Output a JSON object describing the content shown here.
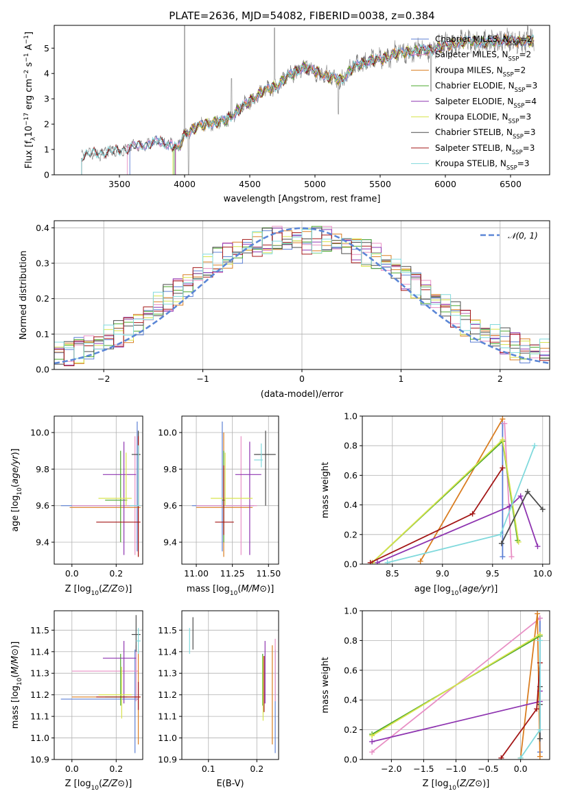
{
  "title": "PLATE=2636, MJD=54082, FIBERID=0038, z=0.384",
  "models": [
    {
      "name": "Chabrier MILES, N",
      "sub": "SSP",
      "tail": "=2",
      "color": "#5b7fd4"
    },
    {
      "name": "Salpeter MILES, N",
      "sub": "SSP",
      "tail": "=2",
      "color": "#e88fc4"
    },
    {
      "name": "Kroupa MILES, N",
      "sub": "SSP",
      "tail": "=2",
      "color": "#d97d21"
    },
    {
      "name": "Chabrier ELODIE, N",
      "sub": "SSP",
      "tail": "=3",
      "color": "#4aa62b"
    },
    {
      "name": "Salpeter ELODIE, N",
      "sub": "SSP",
      "tail": "=4",
      "color": "#8e34b0"
    },
    {
      "name": "Kroupa ELODIE, N",
      "sub": "SSP",
      "tail": "=3",
      "color": "#d7e34c"
    },
    {
      "name": "Chabrier STELIB, N",
      "sub": "SSP",
      "tail": "=3",
      "color": "#4a4a4a"
    },
    {
      "name": "Salpeter STELIB, N",
      "sub": "SSP",
      "tail": "=3",
      "color": "#a31616"
    },
    {
      "name": "Kroupa STELIB, N",
      "sub": "SSP",
      "tail": "=3",
      "color": "#7fd9dc"
    }
  ],
  "chart_data": [
    {
      "id": "spectrum",
      "type": "line",
      "xlabel": "wavelength [Angstrom, rest frame]",
      "ylabel_parts": [
        "Flux [f",
        "λ",
        "10",
        "−17",
        " erg cm",
        "−2",
        " s",
        "−1",
        " A",
        "−1",
        "]"
      ],
      "xlim": [
        3000,
        6800
      ],
      "ylim": [
        0,
        5.9
      ],
      "xticks": [
        3500,
        4000,
        4500,
        5000,
        5500,
        6000,
        6500
      ],
      "yticks": [
        0,
        1,
        2,
        3,
        4,
        5
      ],
      "legend": "right",
      "continuum": [
        [
          3210,
          0.75
        ],
        [
          3300,
          0.85
        ],
        [
          3400,
          0.9
        ],
        [
          3500,
          0.95
        ],
        [
          3600,
          1.1
        ],
        [
          3700,
          1.2
        ],
        [
          3800,
          1.3
        ],
        [
          3900,
          1.2
        ],
        [
          3950,
          1.0
        ],
        [
          4000,
          1.6
        ],
        [
          4100,
          1.9
        ],
        [
          4200,
          2.05
        ],
        [
          4300,
          2.1
        ],
        [
          4400,
          2.5
        ],
        [
          4500,
          2.9
        ],
        [
          4600,
          3.3
        ],
        [
          4700,
          3.5
        ],
        [
          4800,
          3.9
        ],
        [
          4900,
          4.25
        ],
        [
          5000,
          4.1
        ],
        [
          5100,
          3.85
        ],
        [
          5200,
          3.75
        ],
        [
          5300,
          4.25
        ],
        [
          5400,
          4.5
        ],
        [
          5500,
          4.55
        ],
        [
          5600,
          4.75
        ],
        [
          5700,
          4.85
        ],
        [
          5800,
          4.9
        ],
        [
          5900,
          4.95
        ],
        [
          6000,
          5.1
        ],
        [
          6100,
          5.2
        ],
        [
          6200,
          5.3
        ],
        [
          6300,
          5.2
        ],
        [
          6400,
          5.3
        ],
        [
          6500,
          5.3
        ],
        [
          6600,
          5.25
        ],
        [
          6680,
          5.3
        ]
      ],
      "model_starts": [
        3580,
        3560,
        3930,
        3920,
        3930,
        3910,
        3210,
        3210,
        3210
      ]
    },
    {
      "id": "residuals",
      "type": "histogram",
      "xlabel": "(data-model)/error",
      "ylabel": "Normed distribution",
      "xlim": [
        -2.5,
        2.5
      ],
      "ylim": [
        0,
        0.42
      ],
      "xticks": [
        -2,
        -1,
        0,
        1,
        2
      ],
      "xticklabels": [
        "−2",
        "−1",
        "0",
        "1",
        "2"
      ],
      "yticks": [
        0,
        0.1,
        0.2,
        0.3,
        0.4
      ],
      "yticklabels": [
        "0.0",
        "0.1",
        "0.2",
        "0.3",
        "0.4"
      ],
      "bin_width": 0.1,
      "reference_label": "𝒩(0, 1)",
      "reference_color": "#5b86d6",
      "legend": "top-right"
    },
    {
      "id": "age-vs-Z",
      "type": "errorbar",
      "xlabel": "Z [log10(Z/Z⊙)]",
      "ylabel": "age [log10(age/yr)]",
      "xlim": [
        -0.08,
        0.32
      ],
      "ylim": [
        9.28,
        10.09
      ],
      "xticks": [
        0.0,
        0.2
      ],
      "xticklabels": [
        "0.0",
        "0.2"
      ],
      "yticks": [
        9.4,
        9.6,
        9.8,
        10.0
      ],
      "yticklabels": [
        "9.4",
        "9.6",
        "9.8",
        "10.0"
      ],
      "points": [
        {
          "m": 0,
          "x": 0.295,
          "y": 9.6,
          "x0": -0.05,
          "x1": 0.3,
          "y0": 9.35,
          "y1": 10.06
        },
        {
          "m": 1,
          "x": 0.285,
          "y": 9.6,
          "x0": 0.0,
          "x1": 0.3,
          "y0": 9.33,
          "y1": 9.98
        },
        {
          "m": 2,
          "x": 0.3,
          "y": 9.59,
          "x0": -0.01,
          "x1": 0.31,
          "y0": 9.32,
          "y1": 10.0
        },
        {
          "m": 3,
          "x": 0.22,
          "y": 9.63,
          "x0": 0.15,
          "x1": 0.25,
          "y0": 9.4,
          "y1": 9.9
        },
        {
          "m": 4,
          "x": 0.235,
          "y": 9.77,
          "x0": 0.14,
          "x1": 0.29,
          "y0": 9.33,
          "y1": 9.95
        },
        {
          "m": 5,
          "x": 0.245,
          "y": 9.64,
          "x0": 0.12,
          "x1": 0.27,
          "y0": 9.6,
          "y1": 9.89
        },
        {
          "m": 6,
          "x": 0.3,
          "y": 9.88,
          "x0": 0.27,
          "x1": 0.31,
          "y0": 9.6,
          "y1": 10.01
        },
        {
          "m": 7,
          "x": 0.3,
          "y": 9.51,
          "x0": 0.11,
          "x1": 0.31,
          "y0": 9.32,
          "y1": 9.98
        },
        {
          "m": 8,
          "x": 0.3,
          "y": 9.6,
          "x0": 0.26,
          "x1": 0.31,
          "y0": 9.6,
          "y1": 9.93
        }
      ]
    },
    {
      "id": "age-vs-mass",
      "type": "errorbar",
      "xlabel": "mass [log10(M/M⊙)]",
      "ylabel": "",
      "xlim": [
        10.9,
        11.57
      ],
      "ylim": [
        9.28,
        10.09
      ],
      "xticks": [
        11.0,
        11.25,
        11.5
      ],
      "xticklabels": [
        "11.00",
        "11.25",
        "11.50"
      ],
      "yticks": [
        9.4,
        9.6,
        9.8,
        10.0
      ],
      "yticklabels": [
        "9.4",
        "9.6",
        "9.8",
        "10.0"
      ],
      "points": [
        {
          "m": 0,
          "x": 11.18,
          "y": 9.6,
          "x0": 10.97,
          "x1": 11.4,
          "y0": 9.35,
          "y1": 10.06
        },
        {
          "m": 1,
          "x": 11.31,
          "y": 9.6,
          "x0": 11.0,
          "x1": 11.42,
          "y0": 9.33,
          "y1": 9.98
        },
        {
          "m": 2,
          "x": 11.19,
          "y": 9.59,
          "x0": 11.0,
          "x1": 11.39,
          "y0": 9.32,
          "y1": 10.0
        },
        {
          "m": 3,
          "x": 11.19,
          "y": 9.63,
          "x0": 11.18,
          "x1": 11.2,
          "y0": 9.4,
          "y1": 9.9
        },
        {
          "m": 4,
          "x": 11.37,
          "y": 9.77,
          "x0": 11.27,
          "x1": 11.45,
          "y0": 9.33,
          "y1": 9.95
        },
        {
          "m": 5,
          "x": 11.2,
          "y": 9.64,
          "x0": 11.1,
          "x1": 11.39,
          "y0": 9.6,
          "y1": 9.89
        },
        {
          "m": 6,
          "x": 11.48,
          "y": 9.88,
          "x0": 11.4,
          "x1": 11.55,
          "y0": 9.6,
          "y1": 10.01
        },
        {
          "m": 7,
          "x": 11.19,
          "y": 9.51,
          "x0": 11.13,
          "x1": 11.26,
          "y0": 9.44,
          "y1": 9.82
        },
        {
          "m": 8,
          "x": 11.45,
          "y": 9.85,
          "x0": 11.4,
          "x1": 11.46,
          "y0": 9.81,
          "y1": 9.94
        }
      ]
    },
    {
      "id": "weight-vs-age",
      "type": "line",
      "xlabel": "age [log10(age/yr)]",
      "ylabel": "mass weight",
      "xlim": [
        8.2,
        10.07
      ],
      "ylim": [
        0,
        1
      ],
      "xticks": [
        8.5,
        9.0,
        9.5,
        10.0
      ],
      "xticklabels": [
        "8.5",
        "9.0",
        "9.5",
        "10.0"
      ],
      "yticks": [
        0,
        0.2,
        0.4,
        0.6,
        0.8,
        1.0
      ],
      "yticklabels": [
        "0.0",
        "0.2",
        "0.4",
        "0.6",
        "0.8",
        "1.0"
      ],
      "series": [
        {
          "m": 0,
          "points": [
            [
              9.6,
              0.95
            ],
            [
              9.6,
              0.05
            ]
          ]
        },
        {
          "m": 1,
          "points": [
            [
              9.62,
              0.95
            ],
            [
              9.69,
              0.05
            ]
          ]
        },
        {
          "m": 2,
          "points": [
            [
              8.78,
              0.02
            ],
            [
              9.6,
              0.98
            ]
          ]
        },
        {
          "m": 3,
          "points": [
            [
              8.3,
              0.01
            ],
            [
              9.6,
              0.83
            ],
            [
              9.75,
              0.16
            ]
          ]
        },
        {
          "m": 4,
          "points": [
            [
              8.35,
              0.01
            ],
            [
              9.67,
              0.39
            ],
            [
              9.78,
              0.46
            ],
            [
              9.95,
              0.12
            ]
          ]
        },
        {
          "m": 5,
          "points": [
            [
              8.3,
              0.01
            ],
            [
              9.6,
              0.84
            ],
            [
              9.76,
              0.15
            ]
          ]
        },
        {
          "m": 6,
          "points": [
            [
              9.59,
              0.14
            ],
            [
              9.85,
              0.49
            ],
            [
              10.0,
              0.37
            ]
          ]
        },
        {
          "m": 7,
          "points": [
            [
              8.28,
              0.01
            ],
            [
              9.3,
              0.34
            ],
            [
              9.6,
              0.65
            ]
          ]
        },
        {
          "m": 8,
          "points": [
            [
              8.45,
              0.01
            ],
            [
              9.58,
              0.2
            ],
            [
              9.92,
              0.8
            ]
          ]
        }
      ]
    },
    {
      "id": "mass-vs-Z",
      "type": "errorbar",
      "xlabel": "Z [log10(Z/Z⊙)]",
      "ylabel": "mass [log10(M/M⊙)]",
      "xlim": [
        -0.08,
        0.32
      ],
      "ylim": [
        10.9,
        11.59
      ],
      "xticks": [
        0.0,
        0.2
      ],
      "xticklabels": [
        "0.0",
        "0.2"
      ],
      "yticks": [
        10.9,
        11.0,
        11.1,
        11.2,
        11.3,
        11.4,
        11.5
      ],
      "yticklabels": [
        "10.9",
        "11.0",
        "11.1",
        "11.2",
        "11.3",
        "11.4",
        "11.5"
      ],
      "points": [
        {
          "m": 0,
          "x": 0.285,
          "y": 11.18,
          "x0": -0.05,
          "x1": 0.3,
          "y0": 10.93,
          "y1": 11.41
        },
        {
          "m": 1,
          "x": 0.29,
          "y": 11.31,
          "x0": 0.0,
          "x1": 0.3,
          "y0": 11.17,
          "y1": 11.43
        },
        {
          "m": 2,
          "x": 0.3,
          "y": 11.19,
          "x0": 0.0,
          "x1": 0.31,
          "y0": 10.97,
          "y1": 11.41
        },
        {
          "m": 3,
          "x": 0.22,
          "y": 11.19,
          "x0": 0.15,
          "x1": 0.25,
          "y0": 11.15,
          "y1": 11.39
        },
        {
          "m": 4,
          "x": 0.235,
          "y": 11.37,
          "x0": 0.14,
          "x1": 0.29,
          "y0": 11.16,
          "y1": 11.45
        },
        {
          "m": 5,
          "x": 0.225,
          "y": 11.2,
          "x0": 0.12,
          "x1": 0.27,
          "y0": 11.09,
          "y1": 11.33
        },
        {
          "m": 6,
          "x": 0.29,
          "y": 11.48,
          "x0": 0.27,
          "x1": 0.31,
          "y0": 11.4,
          "y1": 11.57
        },
        {
          "m": 7,
          "x": 0.3,
          "y": 11.19,
          "x0": 0.11,
          "x1": 0.31,
          "y0": 11.13,
          "y1": 11.26
        },
        {
          "m": 8,
          "x": 0.3,
          "y": 11.45,
          "x0": 0.29,
          "x1": 0.31,
          "y0": 11.39,
          "y1": 11.51
        }
      ]
    },
    {
      "id": "mass-vs-ebv",
      "type": "errorbar",
      "xlabel": "E(B-V)",
      "ylabel": "",
      "xlim": [
        0.045,
        0.245
      ],
      "ylim": [
        10.9,
        11.59
      ],
      "xticks": [
        0.1,
        0.2
      ],
      "xticklabels": [
        "0.1",
        "0.2"
      ],
      "yticks": [
        10.9,
        11.0,
        11.1,
        11.2,
        11.3,
        11.4,
        11.5
      ],
      "yticklabels": [
        "10.9",
        "11.0",
        "11.1",
        "11.2",
        "11.3",
        "11.4",
        "11.5"
      ],
      "points": [
        {
          "m": 0,
          "x": 0.238,
          "y": 11.18,
          "x0": 0.238,
          "x1": 0.238,
          "y0": 10.93,
          "y1": 11.41
        },
        {
          "m": 1,
          "x": 0.238,
          "y": 11.31,
          "x0": 0.238,
          "x1": 0.238,
          "y0": 11.17,
          "y1": 11.46
        },
        {
          "m": 2,
          "x": 0.232,
          "y": 11.19,
          "x0": 0.232,
          "x1": 0.232,
          "y0": 10.97,
          "y1": 11.43
        },
        {
          "m": 3,
          "x": 0.212,
          "y": 11.19,
          "x0": 0.212,
          "x1": 0.212,
          "y0": 11.15,
          "y1": 11.39
        },
        {
          "m": 4,
          "x": 0.217,
          "y": 11.37,
          "x0": 0.217,
          "x1": 0.217,
          "y0": 11.16,
          "y1": 11.45
        },
        {
          "m": 5,
          "x": 0.213,
          "y": 11.2,
          "x0": 0.213,
          "x1": 0.213,
          "y0": 11.08,
          "y1": 11.38
        },
        {
          "m": 6,
          "x": 0.068,
          "y": 11.48,
          "x0": 0.068,
          "x1": 0.068,
          "y0": 11.41,
          "y1": 11.56
        },
        {
          "m": 7,
          "x": 0.215,
          "y": 11.19,
          "x0": 0.215,
          "x1": 0.215,
          "y0": 11.12,
          "y1": 11.38
        },
        {
          "m": 8,
          "x": 0.061,
          "y": 11.45,
          "x0": 0.061,
          "x1": 0.061,
          "y0": 11.39,
          "y1": 11.51
        }
      ]
    },
    {
      "id": "weight-vs-Z",
      "type": "line",
      "xlabel": "Z [log10(Z/Z⊙)]",
      "ylabel": "mass weight",
      "xlim": [
        -2.45,
        0.45
      ],
      "ylim": [
        0,
        1
      ],
      "xticks": [
        -2.0,
        -1.5,
        -1.0,
        -0.5,
        0.0
      ],
      "xticklabels": [
        "−2.0",
        "−1.5",
        "−1.0",
        "−0.5",
        "0.0"
      ],
      "yticks": [
        0,
        0.2,
        0.4,
        0.6,
        0.8,
        1.0
      ],
      "yticklabels": [
        "0.0",
        "0.2",
        "0.4",
        "0.6",
        "0.8",
        "1.0"
      ],
      "series": [
        {
          "m": 0,
          "points": [
            [
              0.3,
              0.05
            ],
            [
              0.3,
              0.95
            ]
          ]
        },
        {
          "m": 1,
          "points": [
            [
              -2.3,
              0.05
            ],
            [
              0.3,
              0.95
            ]
          ]
        },
        {
          "m": 2,
          "points": [
            [
              0.0,
              0.01
            ],
            [
              0.26,
              0.98
            ],
            [
              0.3,
              0.02
            ]
          ]
        },
        {
          "m": 3,
          "points": [
            [
              -2.3,
              0.17
            ],
            [
              0.3,
              0.83
            ]
          ]
        },
        {
          "m": 4,
          "points": [
            [
              -2.3,
              0.12
            ],
            [
              0.3,
              0.39
            ],
            [
              0.3,
              0.46
            ]
          ]
        },
        {
          "m": 5,
          "points": [
            [
              -2.3,
              0.16
            ],
            [
              0.3,
              0.84
            ]
          ]
        },
        {
          "m": 6,
          "points": [
            [
              0.3,
              0.14
            ],
            [
              0.3,
              0.49
            ],
            [
              0.3,
              0.37
            ]
          ]
        },
        {
          "m": 7,
          "points": [
            [
              -0.3,
              0.01
            ],
            [
              0.25,
              0.34
            ],
            [
              0.3,
              0.65
            ]
          ]
        },
        {
          "m": 8,
          "points": [
            [
              0.0,
              0.01
            ],
            [
              0.3,
              0.2
            ],
            [
              0.3,
              0.8
            ]
          ]
        }
      ]
    }
  ]
}
